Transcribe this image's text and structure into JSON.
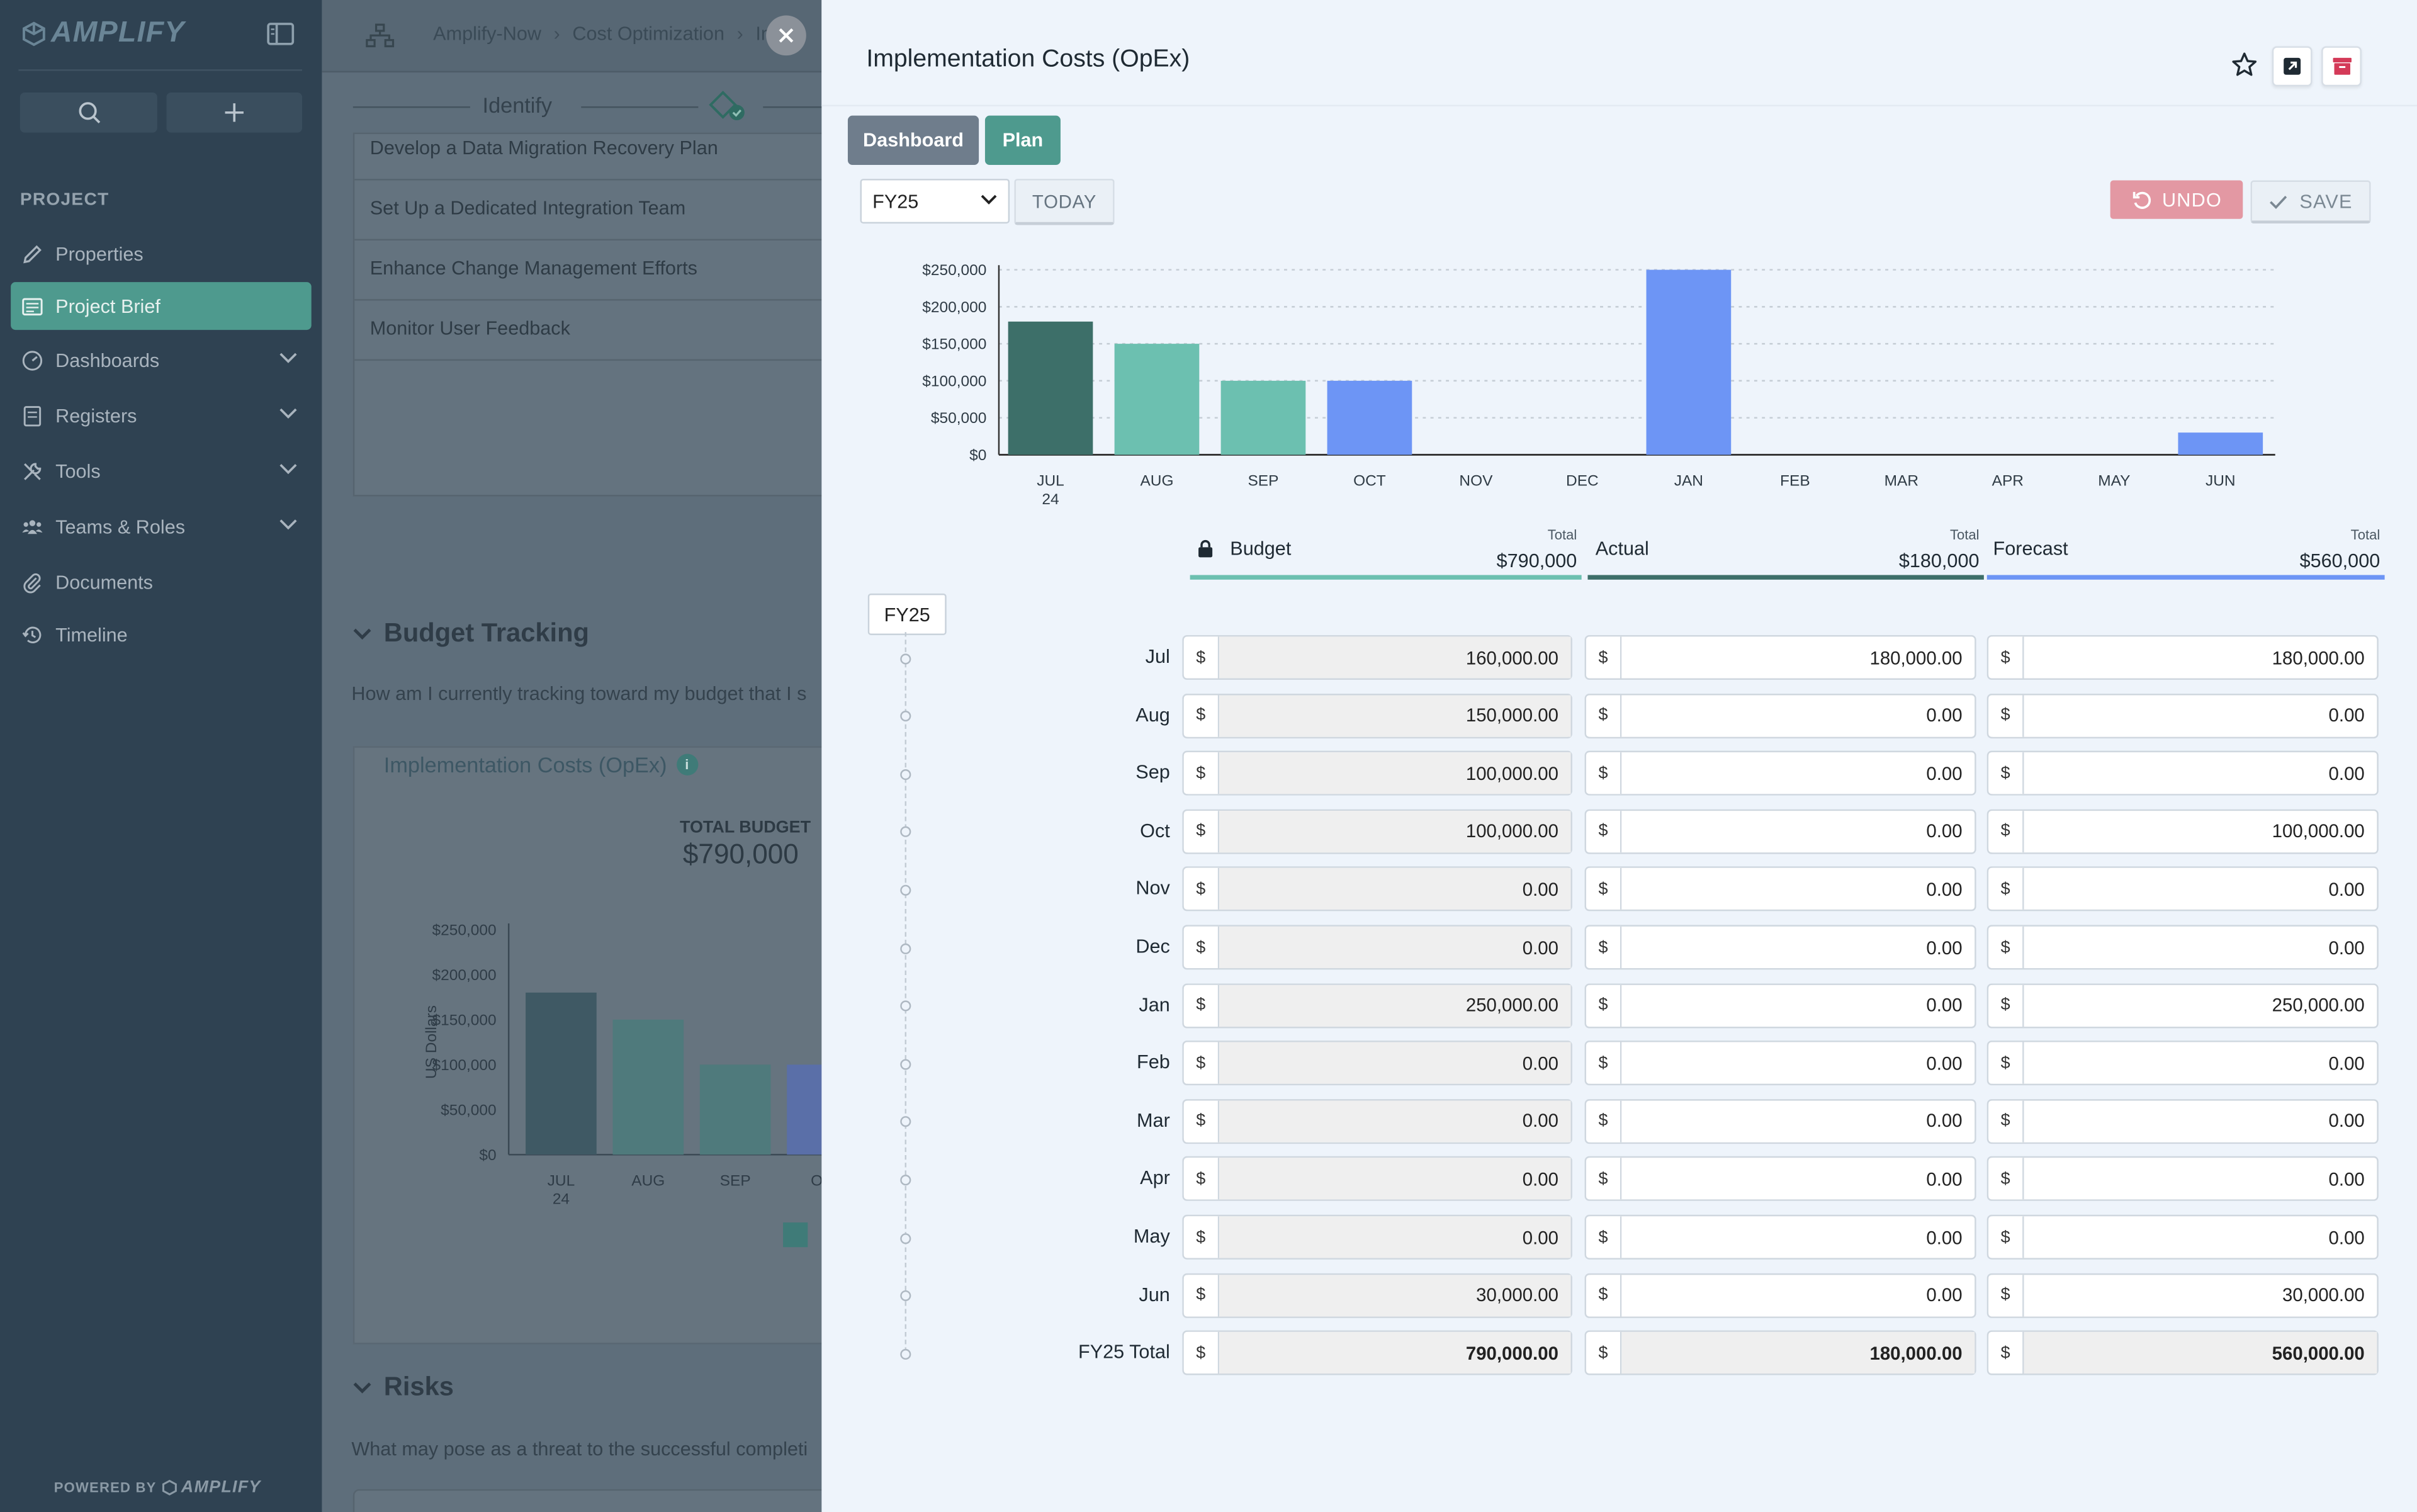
{
  "app": {
    "logo": "AMPLIFY",
    "powered_by": "POWERED BY",
    "powered_brand": "AMPLIFY"
  },
  "sidebar": {
    "section": "PROJECT",
    "items": [
      {
        "label": "Properties",
        "icon": "pencil-icon"
      },
      {
        "label": "Project Brief",
        "icon": "brief-icon",
        "active": true
      },
      {
        "label": "Dashboards",
        "icon": "gauge-icon",
        "expandable": true
      },
      {
        "label": "Registers",
        "icon": "register-icon",
        "expandable": true
      },
      {
        "label": "Tools",
        "icon": "tools-icon",
        "expandable": true
      },
      {
        "label": "Teams & Roles",
        "icon": "team-icon",
        "expandable": true
      },
      {
        "label": "Documents",
        "icon": "paperclip-icon"
      },
      {
        "label": "Timeline",
        "icon": "history-icon"
      }
    ]
  },
  "background": {
    "breadcrumbs": [
      "Amplify-Now",
      "Cost Optimization",
      "Im"
    ],
    "stepper_label": "Identify",
    "list": [
      "Develop a Data Migration Recovery Plan",
      "Set Up a Dedicated Integration Team",
      "Enhance Change Management Efforts",
      "Monitor User Feedback"
    ],
    "budget_section": {
      "title": "Budget Tracking",
      "question": "How am I currently tracking toward my budget that I s"
    },
    "chart_card": {
      "title": "Implementation Costs (OpEx)",
      "info_glyph": "i",
      "total_label": "TOTAL BUDGET",
      "total_value": "$790,000",
      "ylabel": "US Dollars"
    },
    "risks_section": {
      "title": "Risks",
      "question": "What may pose as a threat to the successful completi"
    }
  },
  "panel": {
    "title": "Implementation Costs (OpEx)",
    "tabs": [
      "Dashboard",
      "Plan"
    ],
    "fiscal_year": "FY25",
    "today": "TODAY",
    "undo": "UNDO",
    "save": "SAVE",
    "legend": [
      {
        "name": "Budget",
        "total_label": "Total",
        "total": "$790,000",
        "color": "#6cc0b0",
        "locked": true
      },
      {
        "name": "Actual",
        "total_label": "Total",
        "total": "$180,000",
        "color": "#3d6f69"
      },
      {
        "name": "Forecast",
        "total_label": "Total",
        "total": "$560,000",
        "color": "#6d95f5"
      }
    ],
    "timeline_label": "FY25",
    "currency": "$",
    "rows": [
      {
        "month": "Jul",
        "budget": "160,000.00",
        "actual": "180,000.00",
        "forecast": "180,000.00"
      },
      {
        "month": "Aug",
        "budget": "150,000.00",
        "actual": "0.00",
        "forecast": "0.00"
      },
      {
        "month": "Sep",
        "budget": "100,000.00",
        "actual": "0.00",
        "forecast": "0.00"
      },
      {
        "month": "Oct",
        "budget": "100,000.00",
        "actual": "0.00",
        "forecast": "100,000.00"
      },
      {
        "month": "Nov",
        "budget": "0.00",
        "actual": "0.00",
        "forecast": "0.00"
      },
      {
        "month": "Dec",
        "budget": "0.00",
        "actual": "0.00",
        "forecast": "0.00"
      },
      {
        "month": "Jan",
        "budget": "250,000.00",
        "actual": "0.00",
        "forecast": "250,000.00"
      },
      {
        "month": "Feb",
        "budget": "0.00",
        "actual": "0.00",
        "forecast": "0.00"
      },
      {
        "month": "Mar",
        "budget": "0.00",
        "actual": "0.00",
        "forecast": "0.00"
      },
      {
        "month": "Apr",
        "budget": "0.00",
        "actual": "0.00",
        "forecast": "0.00"
      },
      {
        "month": "May",
        "budget": "0.00",
        "actual": "0.00",
        "forecast": "0.00"
      },
      {
        "month": "Jun",
        "budget": "30,000.00",
        "actual": "0.00",
        "forecast": "30,000.00"
      }
    ],
    "total_row": {
      "month": "FY25 Total",
      "budget": "790,000.00",
      "actual": "180,000.00",
      "forecast": "560,000.00"
    }
  },
  "colors": {
    "actual": "#3d6f69",
    "budget": "#6cc0b0",
    "forecast": "#6d95f5",
    "accent": "#4e9a8e",
    "dashboard_tab": "#6f7d8c",
    "undo": "#e398a3"
  },
  "chart_data": [
    {
      "type": "bar",
      "title": "Implementation Costs (OpEx)",
      "categories": [
        "JUL",
        "AUG",
        "SEP",
        "OCT",
        "NOV",
        "DEC",
        "JAN",
        "FEB",
        "MAR",
        "APR",
        "MAY",
        "JUN"
      ],
      "year_label": "24",
      "values": [
        180000,
        150000,
        100000,
        100000,
        0,
        0,
        250000,
        0,
        0,
        0,
        0,
        30000
      ],
      "bar_series": [
        "actual",
        "budget",
        "budget",
        "forecast",
        "none",
        "none",
        "forecast",
        "none",
        "none",
        "none",
        "none",
        "forecast"
      ],
      "yticks": [
        "$0",
        "$50,000",
        "$100,000",
        "$150,000",
        "$200,000",
        "$250,000"
      ],
      "ylim": [
        0,
        250000
      ],
      "xlabel": "",
      "ylabel": "",
      "grid": true
    },
    {
      "type": "bar",
      "title": "Implementation Costs (OpEx)",
      "categories": [
        "JUL",
        "AUG",
        "SEP",
        "OC"
      ],
      "year_label": "24",
      "values": [
        180000,
        150000,
        100000,
        100000
      ],
      "yticks": [
        "$0",
        "$50,000",
        "$100,000",
        "$150,000",
        "$200,000",
        "$250,000"
      ],
      "ylim": [
        0,
        250000
      ],
      "ylabel": "US Dollars"
    }
  ]
}
